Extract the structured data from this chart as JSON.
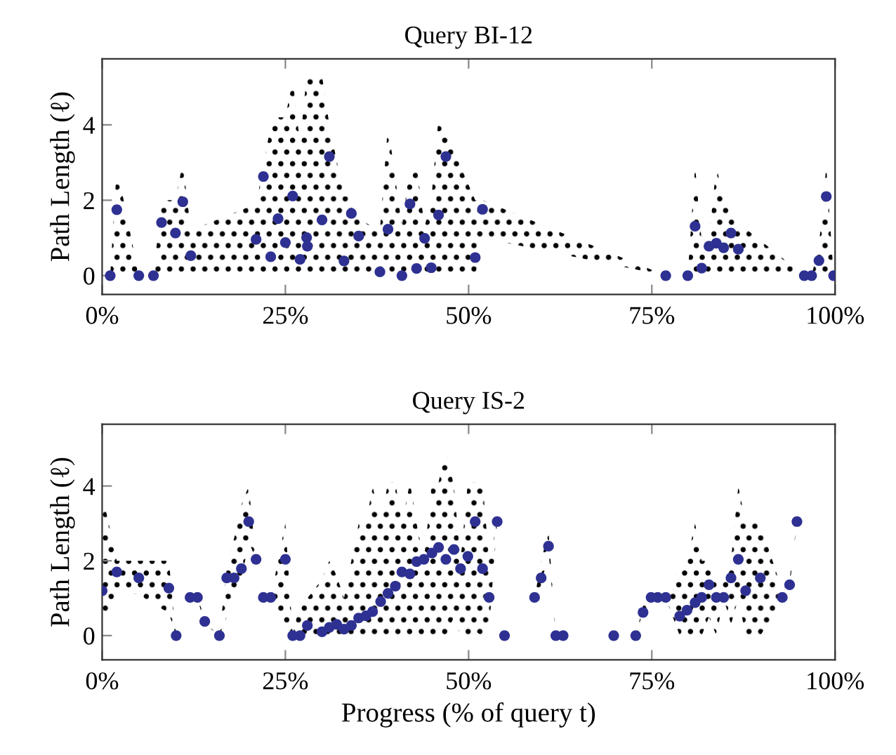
{
  "chart_data": [
    {
      "type": "scatter",
      "title": "Query BI-12",
      "ylabel": "Path Length (ℓ)",
      "xlim": [
        0,
        100
      ],
      "ylim": [
        -0.5,
        5.75
      ],
      "xticks": [
        {
          "value": 0,
          "label": "0%"
        },
        {
          "value": 25,
          "label": "25%"
        },
        {
          "value": 50,
          "label": "50%"
        },
        {
          "value": 75,
          "label": "75%"
        },
        {
          "value": 100,
          "label": "100%"
        }
      ],
      "yticks": [
        0,
        2,
        4
      ],
      "grid": false,
      "marker": "circle",
      "series": [
        {
          "color": "#2e3192",
          "x": [
            1.1,
            2.0,
            5.0,
            7.0,
            8.1,
            10.0,
            11.0,
            12.1,
            21.0,
            22.0,
            23.0,
            24.0,
            25.0,
            26.0,
            27.0,
            27.9,
            28.0,
            30.0,
            31.0,
            33.0,
            34.0,
            35.0,
            37.9,
            39.0,
            40.9,
            42.0,
            42.9,
            44.0,
            44.9,
            45.9,
            46.9,
            50.9,
            51.9,
            76.9,
            79.9,
            80.9,
            81.8,
            82.8,
            83.8,
            84.8,
            85.8,
            86.8,
            95.8,
            96.8,
            97.8,
            98.8,
            99.8
          ],
          "values": [
            0,
            1.75,
            0,
            0,
            1.41,
            1.13,
            1.96,
            0.53,
            0.96,
            2.63,
            0.5,
            1.51,
            0.88,
            2.11,
            0.43,
            1.01,
            0.78,
            1.48,
            3.16,
            0.39,
            1.65,
            1.05,
            0.1,
            1.23,
            0,
            1.9,
            0.19,
            0.99,
            0.21,
            1.61,
            3.16,
            0.48,
            1.76,
            0,
            0,
            1.31,
            0.2,
            0.78,
            0.86,
            0.74,
            1.13,
            0.7,
            0,
            0,
            0.4,
            2.1,
            0
          ],
          "lower": [
            0,
            0,
            0,
            0,
            0,
            0,
            0,
            0,
            0,
            0,
            0,
            0,
            0,
            0,
            0,
            0,
            0,
            0,
            0,
            0,
            0,
            0,
            0,
            0,
            0,
            0,
            0,
            0,
            0,
            0,
            0,
            0,
            1.0,
            0,
            0,
            0,
            0,
            0,
            0,
            0,
            0,
            0,
            0,
            0,
            0,
            0,
            0
          ],
          "upper": [
            0,
            2.9,
            0,
            0,
            2.0,
            2.0,
            3.0,
            1.2,
            1.9,
            2.9,
            4.0,
            4.2,
            4.2,
            5.2,
            3.5,
            5.3,
            5.3,
            5.3,
            4.0,
            2.1,
            2.1,
            1.5,
            1.2,
            4.0,
            1.3,
            2.9,
            2.9,
            1.3,
            2.0,
            4.2,
            3.8,
            2.0,
            2.0,
            0,
            0,
            2.9,
            0.9,
            1.0,
            2.9,
            2.0,
            1.7,
            1.4,
            0,
            0,
            0.8,
            2.9,
            0
          ]
        }
      ]
    },
    {
      "type": "scatter",
      "title": "Query IS-2",
      "ylabel": "Path Length (ℓ)",
      "xlabel": "Progress (% of query t)",
      "xlim": [
        0,
        100
      ],
      "ylim": [
        -0.65,
        5.65
      ],
      "xticks": [
        {
          "value": 0,
          "label": "0%"
        },
        {
          "value": 25,
          "label": "25%"
        },
        {
          "value": 50,
          "label": "50%"
        },
        {
          "value": 75,
          "label": "75%"
        },
        {
          "value": 100,
          "label": "100%"
        }
      ],
      "yticks": [
        0,
        2,
        4
      ],
      "grid": false,
      "marker": "circle",
      "series": [
        {
          "color": "#2e3192",
          "x": [
            0,
            2.0,
            5.0,
            9.1,
            10.1,
            12.0,
            13.0,
            14.0,
            16.0,
            17.0,
            18.0,
            19.0,
            20.0,
            21.0,
            22.0,
            23.0,
            25.0,
            26.0,
            27.0,
            28.0,
            30.0,
            31.0,
            32.0,
            33.0,
            34.0,
            35.0,
            36.0,
            36.9,
            38.0,
            39.0,
            40.0,
            40.9,
            42.0,
            42.9,
            43.9,
            45.0,
            45.9,
            46.9,
            48.0,
            48.9,
            49.9,
            50.9,
            51.9,
            52.8,
            53.9,
            54.9,
            59.0,
            59.9,
            60.9,
            61.9,
            62.9,
            69.8,
            72.8,
            73.8,
            74.9,
            75.8,
            76.9,
            78.8,
            79.8,
            80.9,
            81.8,
            82.8,
            83.8,
            84.8,
            85.8,
            86.8,
            87.8,
            89.8,
            92.8,
            93.8,
            94.8
          ],
          "values": [
            1.2,
            1.7,
            1.54,
            1.27,
            0,
            1.02,
            1.02,
            0.38,
            0,
            1.54,
            1.54,
            1.79,
            3.05,
            2.04,
            1.02,
            1.02,
            2.04,
            0,
            0,
            0.27,
            0.1,
            0.22,
            0.3,
            0.17,
            0.27,
            0.47,
            0.53,
            0.64,
            0.91,
            1.13,
            1.32,
            1.7,
            1.65,
            1.98,
            2.04,
            2.21,
            2.36,
            2.04,
            2.3,
            1.79,
            2.12,
            3.05,
            1.79,
            1.02,
            3.05,
            0,
            1.02,
            1.54,
            2.39,
            0,
            0,
            0,
            0,
            0.62,
            1.02,
            1.02,
            1.02,
            0.52,
            0.68,
            0.88,
            1.02,
            1.36,
            1.02,
            1.02,
            1.54,
            2.04,
            1.2,
            1.54,
            1.02,
            1.36,
            3.05
          ],
          "lower": [
            0.1,
            1.2,
            1.1,
            0.6,
            0,
            1.0,
            1.0,
            0.3,
            0,
            0.5,
            1.0,
            1.5,
            2.5,
            2.04,
            1.0,
            1.0,
            0.3,
            0,
            0,
            0,
            0,
            0,
            0,
            0,
            0,
            0,
            0,
            0,
            0,
            0,
            0,
            0,
            0,
            0,
            0,
            0,
            0,
            0,
            0.5,
            0,
            0,
            0.1,
            0,
            0.2,
            3.05,
            0,
            1.0,
            1.3,
            2.3,
            0,
            0,
            0,
            0,
            0.5,
            1.0,
            1.0,
            1.0,
            0,
            0,
            0,
            0,
            0.5,
            0,
            1.0,
            0.3,
            1.0,
            0,
            0,
            0.9,
            1.3,
            3.05
          ],
          "upper": [
            3.8,
            2.0,
            2.0,
            2.0,
            0,
            1.0,
            1.0,
            0.5,
            0,
            1.8,
            2.6,
            3.5,
            4.0,
            2.04,
            1.0,
            1.0,
            3.0,
            0,
            0.9,
            1.0,
            1.5,
            2.0,
            1.6,
            1.0,
            2.0,
            3.0,
            3.0,
            4.0,
            3.0,
            4.1,
            4.1,
            3.0,
            4.1,
            3.0,
            2.0,
            4.1,
            4.1,
            5.0,
            4.0,
            2.0,
            4.1,
            4.1,
            4.1,
            2.0,
            3.05,
            0,
            1.0,
            2.0,
            2.8,
            0,
            0,
            0,
            0,
            0.8,
            1.0,
            1.0,
            1.0,
            1.9,
            2.0,
            3.0,
            2.0,
            2.0,
            1.5,
            1.5,
            2.0,
            4.0,
            3.0,
            3.0,
            1.2,
            1.5,
            3.05
          ]
        }
      ]
    }
  ]
}
